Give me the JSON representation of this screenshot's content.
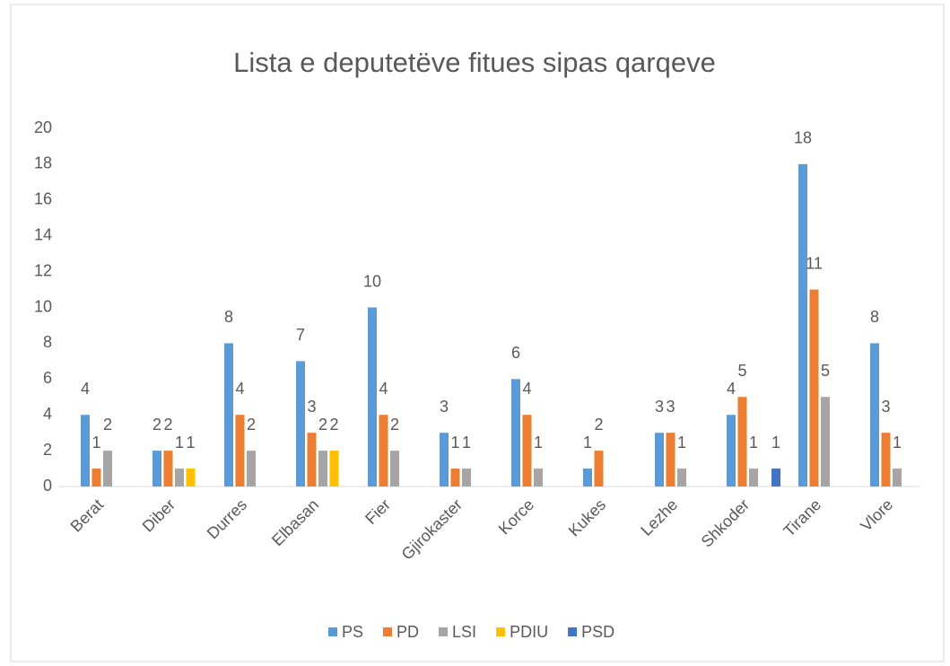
{
  "chart_data": {
    "type": "bar",
    "title": "Lista e deputetëve fitues sipas qarqeve",
    "categories": [
      "Berat",
      "Diber",
      "Durres",
      "Elbasan",
      "Fier",
      "Gjirokaster",
      "Korce",
      "Kukes",
      "Lezhe",
      "Shkoder",
      "Tirane",
      "Vlore"
    ],
    "series": [
      {
        "name": "PS",
        "color": "#5b9bd5",
        "values": [
          4,
          2,
          8,
          7,
          10,
          3,
          6,
          1,
          3,
          4,
          18,
          8
        ]
      },
      {
        "name": "PD",
        "color": "#ed7d31",
        "values": [
          1,
          2,
          4,
          3,
          4,
          1,
          4,
          2,
          3,
          5,
          11,
          3
        ]
      },
      {
        "name": "LSI",
        "color": "#a5a5a5",
        "values": [
          2,
          1,
          2,
          2,
          2,
          1,
          1,
          null,
          1,
          1,
          5,
          1
        ]
      },
      {
        "name": "PDIU",
        "color": "#ffc000",
        "values": [
          null,
          1,
          null,
          2,
          null,
          null,
          null,
          null,
          null,
          null,
          null,
          null
        ]
      },
      {
        "name": "PSD",
        "color": "#4472c4",
        "values": [
          null,
          null,
          null,
          null,
          null,
          null,
          null,
          null,
          null,
          1,
          null,
          null
        ]
      }
    ],
    "ylim": [
      0,
      20
    ],
    "yticks": [
      0,
      2,
      4,
      6,
      8,
      10,
      12,
      14,
      16,
      18,
      20
    ],
    "grid": false,
    "legend": "bottom"
  }
}
